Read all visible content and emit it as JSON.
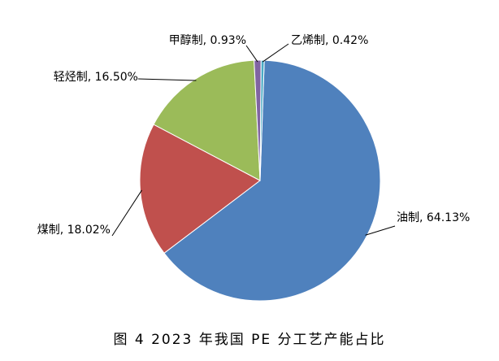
{
  "chart_data": {
    "type": "pie",
    "title": "图 4  2023 年我国 PE 分工艺产能占比",
    "values": [
      64.13,
      18.02,
      16.5,
      0.93,
      0.42
    ],
    "value_labels": [
      "油制, 64.13%",
      "煤制, 18.02%",
      "轻烃制, 16.50%",
      "甲醇制, 0.93%",
      "乙烯制, 0.42%"
    ],
    "colors": [
      "#4f81bd",
      "#c0504d",
      "#9bbb59",
      "#8064a2",
      "#4bacc6"
    ]
  }
}
